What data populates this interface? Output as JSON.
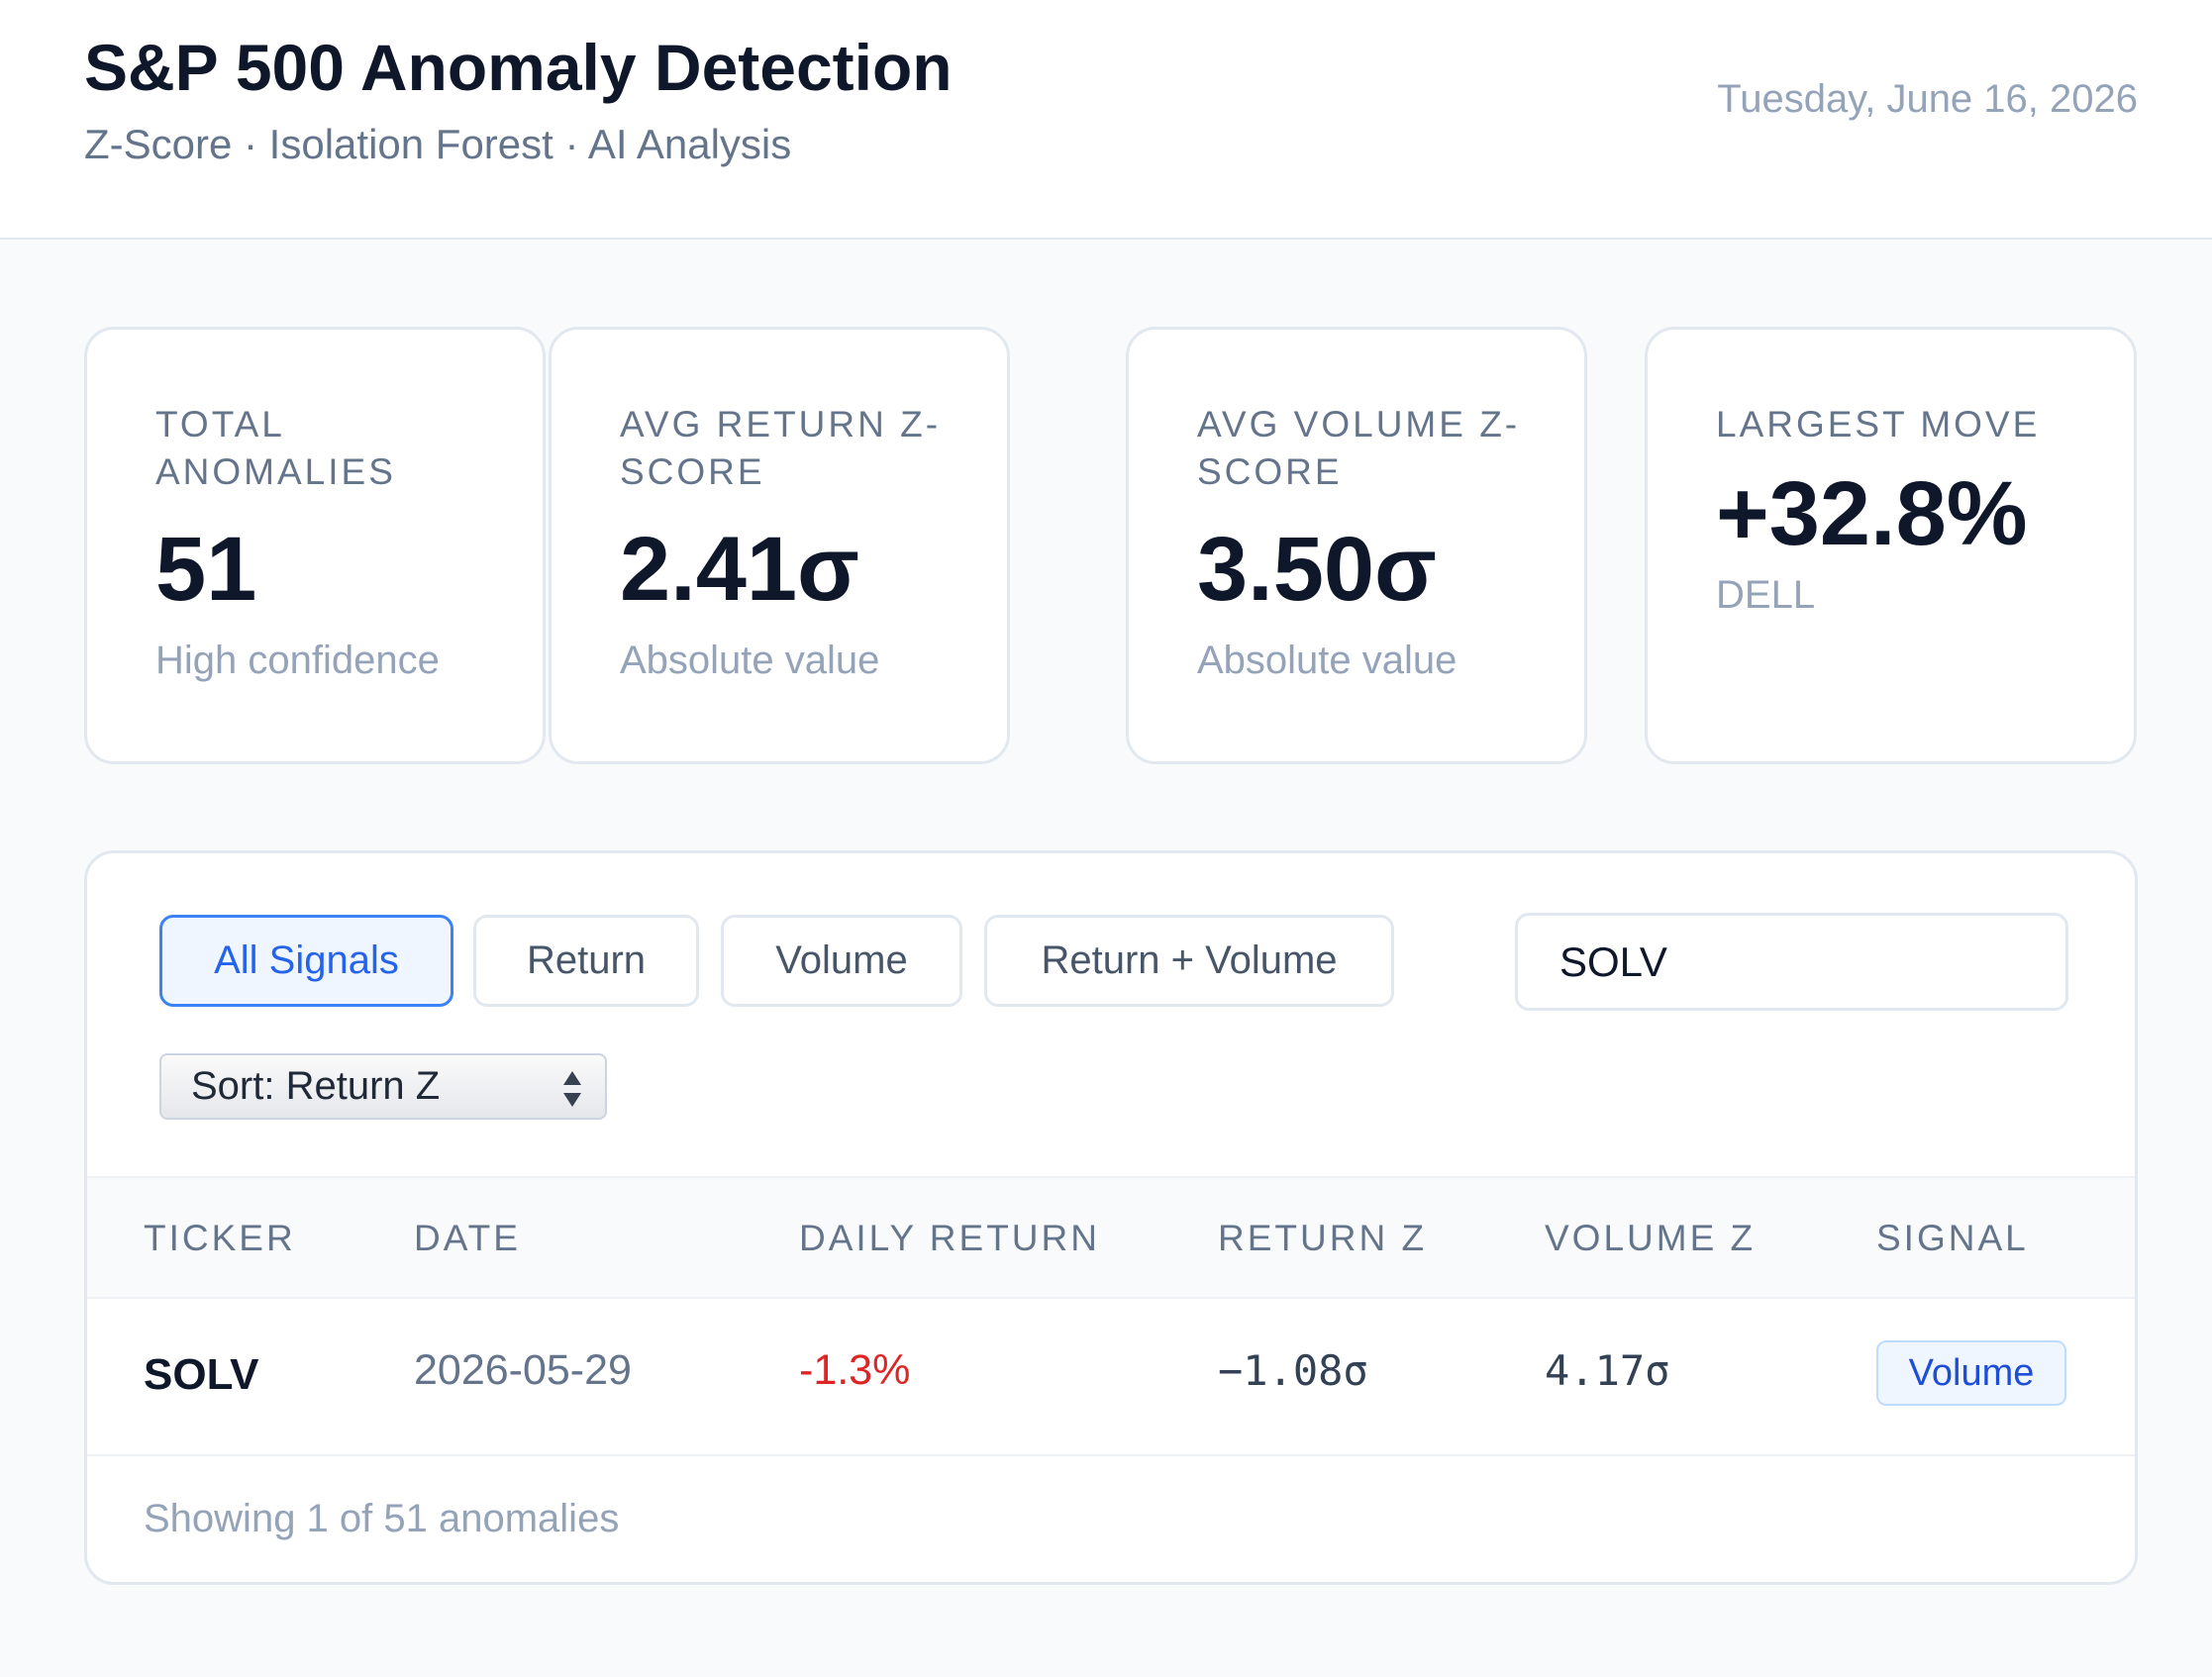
{
  "header": {
    "title": "S&P 500 Anomaly Detection",
    "subtitle": "Z-Score · Isolation Forest · AI Analysis",
    "date": "Tuesday, June 16, 2026"
  },
  "cards": [
    {
      "label": "TOTAL ANOMALIES",
      "value": "51",
      "note": "High confidence"
    },
    {
      "label": "AVG RETURN Z-SCORE",
      "value": "2.41σ",
      "note": "Absolute value"
    },
    {
      "label": "AVG VOLUME Z-SCORE",
      "value": "3.50σ",
      "note": "Absolute value"
    },
    {
      "label": "LARGEST MOVE",
      "value": "+32.8%",
      "note": "DELL"
    }
  ],
  "filters": [
    "All Signals",
    "Return",
    "Volume",
    "Return + Volume"
  ],
  "search": "SOLV",
  "sort": "Sort: Return Z",
  "table": {
    "columns": [
      "TICKER",
      "DATE",
      "DAILY RETURN",
      "RETURN Z",
      "VOLUME Z",
      "SIGNAL"
    ],
    "rows": [
      [
        "SOLV",
        "2026-05-29",
        "-1.3%",
        "−1.08σ",
        "4.17σ",
        "Volume"
      ]
    ]
  },
  "footer": "Showing 1 of 51 anomalies"
}
